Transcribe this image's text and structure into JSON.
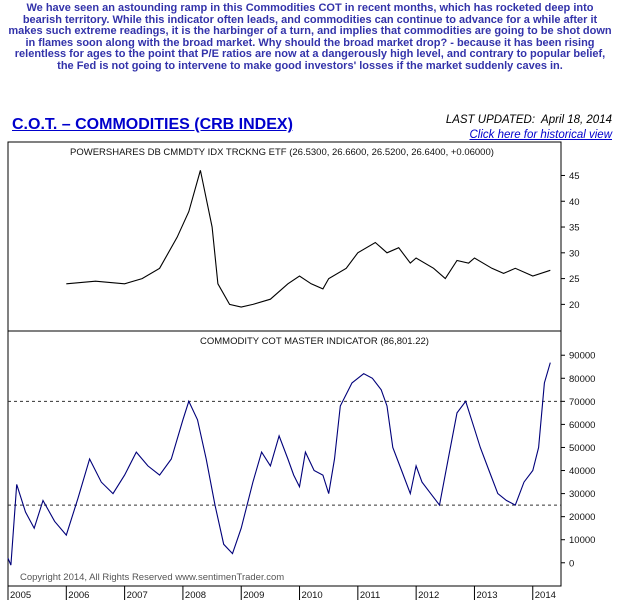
{
  "intro_text": "We have seen an astounding ramp in this Commodities COT in recent months, which has rocketed deep into bearish territory. While this indicator often leads, and commodities can continue to advance for a while after it makes such extreme readings, it is the harbinger of a turn, and implies that commodities are going to be shot down in flames soon along with the broad market. Why should the broad market drop? - because it has been rising relentless for ages to the point that P/E ratios are now at a dangerously high level, and contrary to popular belief, the Fed is not going to intervene to make good investors' losses if the market suddenly caves in.",
  "title": "C.O.T. – COMMODITIES (CRB INDEX)",
  "last_updated_label": "LAST UPDATED:",
  "last_updated_date": "April 18, 2014",
  "history_link": "Click here for historical view",
  "copyright": "Copyright 2014, All Rights Reserved  www.sentimenTrader.com",
  "colors": {
    "text_blue": "#3333aa",
    "title_blue": "#0000cc",
    "indicator_line": "#00007a",
    "price_line": "#000000"
  },
  "chart_data": [
    {
      "type": "line",
      "label": "POWERSHARES DB CMMDTY IDX TRCKNG ETF (26.5300, 26.6600, 26.5200, 26.6400, +0.06000)",
      "x_range": [
        2005.0,
        2014.33
      ],
      "ylim": [
        16,
        48
      ],
      "yticks": [
        20,
        25,
        30,
        35,
        40,
        45
      ],
      "x": [
        2006.0,
        2006.5,
        2007.0,
        2007.3,
        2007.6,
        2007.9,
        2008.1,
        2008.3,
        2008.5,
        2008.6,
        2008.8,
        2009.0,
        2009.2,
        2009.5,
        2009.8,
        2010.0,
        2010.2,
        2010.4,
        2010.5,
        2010.8,
        2011.0,
        2011.3,
        2011.5,
        2011.7,
        2011.9,
        2012.0,
        2012.3,
        2012.5,
        2012.7,
        2012.9,
        2013.0,
        2013.3,
        2013.5,
        2013.7,
        2014.0,
        2014.3
      ],
      "values": [
        24,
        24.5,
        24,
        25,
        27,
        33,
        38,
        46,
        35,
        24,
        20,
        19.5,
        20,
        21,
        24,
        25.5,
        24,
        23,
        25,
        27,
        30,
        32,
        30,
        31,
        28,
        29,
        27,
        25,
        28.5,
        28,
        29,
        27,
        26,
        27,
        25.5,
        26.6
      ]
    },
    {
      "type": "line",
      "label": "COMMODITY COT MASTER INDICATOR (86,801.22)",
      "x_range": [
        2005.0,
        2014.33
      ],
      "ylim": [
        -4000,
        94000
      ],
      "yticks": [
        0,
        10000,
        20000,
        30000,
        40000,
        50000,
        60000,
        70000,
        80000,
        90000
      ],
      "reference_lines": [
        70000,
        25000
      ],
      "xtick_labels": [
        "2005",
        "2006",
        "2007",
        "2008",
        "2009",
        "2010",
        "2011",
        "2012",
        "2013",
        "2014"
      ],
      "x": [
        2005.0,
        2005.05,
        2005.15,
        2005.3,
        2005.45,
        2005.6,
        2005.8,
        2006.0,
        2006.2,
        2006.4,
        2006.6,
        2006.8,
        2007.0,
        2007.2,
        2007.4,
        2007.6,
        2007.8,
        2008.0,
        2008.1,
        2008.25,
        2008.4,
        2008.55,
        2008.7,
        2008.85,
        2009.0,
        2009.2,
        2009.35,
        2009.5,
        2009.65,
        2009.8,
        2009.9,
        2010.0,
        2010.1,
        2010.25,
        2010.4,
        2010.5,
        2010.6,
        2010.7,
        2010.9,
        2011.1,
        2011.25,
        2011.4,
        2011.5,
        2011.6,
        2011.75,
        2011.9,
        2012.0,
        2012.1,
        2012.25,
        2012.4,
        2012.55,
        2012.7,
        2012.85,
        2013.0,
        2013.1,
        2013.25,
        2013.4,
        2013.55,
        2013.7,
        2013.85,
        2014.0,
        2014.1,
        2014.2,
        2014.3
      ],
      "values": [
        2000,
        -1000,
        34000,
        22000,
        15000,
        27000,
        18000,
        12000,
        28000,
        45000,
        35000,
        30000,
        38000,
        48000,
        42000,
        38000,
        45000,
        62000,
        70000,
        62000,
        45000,
        25000,
        8000,
        4000,
        15000,
        35000,
        48000,
        42000,
        55000,
        45000,
        38000,
        33000,
        48000,
        40000,
        38000,
        30000,
        45000,
        68000,
        78000,
        82000,
        80000,
        75000,
        68000,
        50000,
        40000,
        30000,
        42000,
        35000,
        30000,
        25000,
        45000,
        65000,
        70000,
        58000,
        50000,
        40000,
        30000,
        27000,
        25000,
        35000,
        40000,
        50000,
        78000,
        86800
      ]
    }
  ]
}
